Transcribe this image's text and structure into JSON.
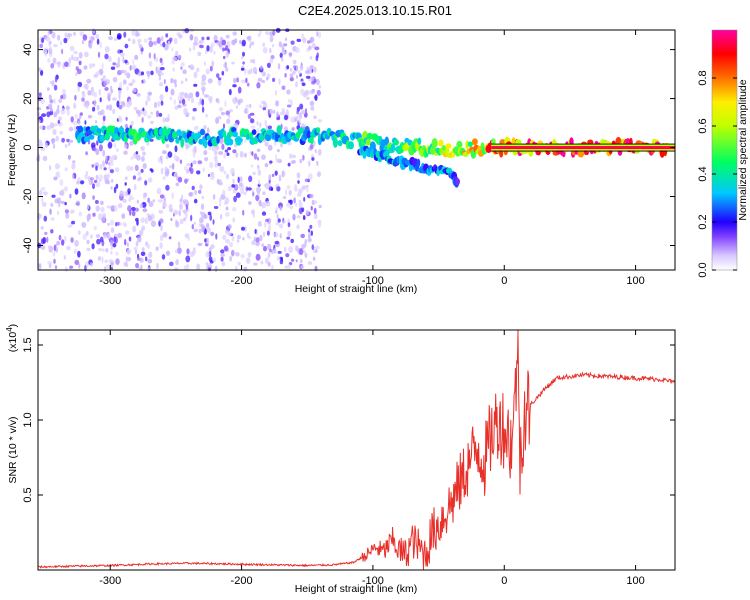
{
  "title": "C2E4.2025.013.10.15.R01",
  "chart_data": [
    {
      "type": "heatmap",
      "xlabel": "Height of straight line (km)",
      "ylabel": "Frequency (Hz)",
      "xlim": [
        -355,
        130
      ],
      "ylim": [
        -50,
        48
      ],
      "xticks": [
        -300,
        -200,
        -100,
        0,
        100
      ],
      "yticks": [
        -40,
        -20,
        0,
        20,
        40
      ],
      "colorbar": {
        "label": "Normalized spectral amplitude",
        "range": [
          0,
          1
        ],
        "ticks": [
          0.0,
          0.2,
          0.4,
          0.6,
          0.8
        ],
        "tick_labels": [
          "0.0",
          "0.2",
          "0.4",
          "0.6",
          "0.8"
        ],
        "colormap": [
          "#ffffff",
          "#d8c8ff",
          "#8040ff",
          "#4000e0",
          "#0000ff",
          "#00c8ff",
          "#00ff80",
          "#c0ff00",
          "#ffff00",
          "#ff8000",
          "#ff0000",
          "#ff00a0"
        ]
      },
      "ridge": [
        {
          "x": -325,
          "y": 5,
          "level": 0.35
        },
        {
          "x": -300,
          "y": 6,
          "level": 0.4
        },
        {
          "x": -275,
          "y": 5,
          "level": 0.45
        },
        {
          "x": -250,
          "y": 4,
          "level": 0.4
        },
        {
          "x": -225,
          "y": 4,
          "level": 0.35
        },
        {
          "x": -200,
          "y": 5,
          "level": 0.4
        },
        {
          "x": -175,
          "y": 5,
          "level": 0.35
        },
        {
          "x": -150,
          "y": 5,
          "level": 0.4
        },
        {
          "x": -125,
          "y": 4,
          "level": 0.45
        },
        {
          "x": -100,
          "y": 2,
          "level": 0.5
        },
        {
          "x": -80,
          "y": 1,
          "level": 0.55
        },
        {
          "x": -60,
          "y": 0,
          "level": 0.6
        },
        {
          "x": -40,
          "y": -1,
          "level": 0.65
        },
        {
          "x": -20,
          "y": 0,
          "level": 0.8
        },
        {
          "x": 0,
          "y": 0,
          "level": 0.9
        },
        {
          "x": 50,
          "y": 0,
          "level": 0.95
        },
        {
          "x": 125,
          "y": 0,
          "level": 0.95
        }
      ],
      "branch": [
        {
          "x": -110,
          "y": -1,
          "level": 0.35
        },
        {
          "x": -90,
          "y": -4,
          "level": 0.35
        },
        {
          "x": -70,
          "y": -7,
          "level": 0.3
        },
        {
          "x": -55,
          "y": -9,
          "level": 0.3
        },
        {
          "x": -40,
          "y": -11,
          "level": 0.35
        },
        {
          "x": -35,
          "y": -15,
          "level": 0.2
        }
      ],
      "noise_region_x": [
        -355,
        -140
      ]
    },
    {
      "type": "line",
      "xlabel": "Height of straight line (km)",
      "ylabel": "SNR (10 * v/v)",
      "y_multiplier": "(x10",
      "y_multiplier_exp": "4",
      "y_multiplier_close": ")",
      "xlim": [
        -355,
        130
      ],
      "ylim": [
        0,
        1.6
      ],
      "xticks": [
        -300,
        -200,
        -100,
        0,
        100
      ],
      "yticks": [
        0.5,
        1.0,
        1.5
      ],
      "ytick_labels": [
        "0.5",
        "1.0",
        "1.5"
      ],
      "series": [
        {
          "color": "#e8302a",
          "x": [
            -355,
            -330,
            -300,
            -270,
            -240,
            -210,
            -180,
            -150,
            -130,
            -115,
            -105,
            -98,
            -92,
            -85,
            -80,
            -75,
            -70,
            -65,
            -60,
            -55,
            -50,
            -45,
            -40,
            -35,
            -30,
            -25,
            -20,
            -15,
            -10,
            -5,
            0,
            5,
            8,
            10,
            12,
            15,
            20,
            25,
            30,
            40,
            60,
            80,
            100,
            120,
            130
          ],
          "y": [
            0.02,
            0.025,
            0.03,
            0.04,
            0.045,
            0.04,
            0.035,
            0.03,
            0.035,
            0.05,
            0.1,
            0.15,
            0.12,
            0.2,
            0.13,
            0.1,
            0.2,
            0.15,
            0.1,
            0.25,
            0.3,
            0.38,
            0.45,
            0.55,
            0.65,
            0.75,
            0.82,
            0.72,
            0.9,
            1.0,
            0.95,
            0.85,
            1.05,
            1.55,
            0.75,
            1.05,
            1.1,
            1.15,
            1.2,
            1.28,
            1.3,
            1.29,
            1.28,
            1.27,
            1.25
          ]
        }
      ]
    }
  ]
}
